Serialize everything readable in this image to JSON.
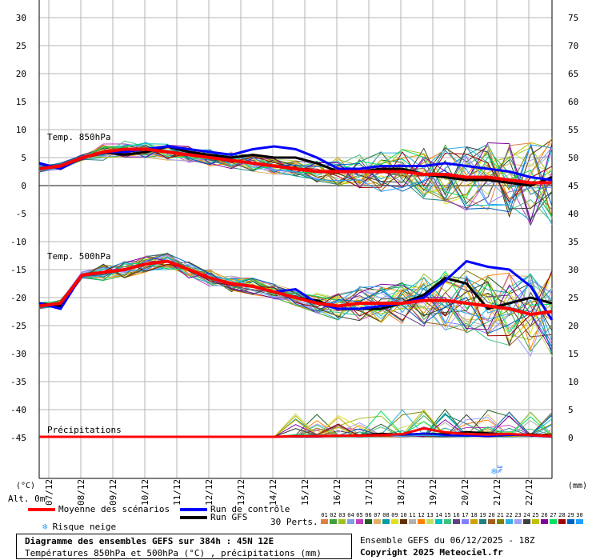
{
  "chart_data": {
    "type": "line",
    "title": "Diagramme des ensembles GEFS sur 384h : 45N 12E",
    "subtitle": "Températures 850hPa et 500hPa (°C) , précipitations (mm)",
    "left_axis": {
      "label": "(°C)",
      "ticks": [
        30,
        25,
        20,
        15,
        10,
        5,
        0,
        -5,
        -10,
        -15,
        -20,
        -25,
        -30,
        -35,
        -40,
        -45
      ]
    },
    "right_axis": {
      "label": "(mm)",
      "ticks": [
        75,
        70,
        65,
        60,
        55,
        50,
        45,
        40,
        35,
        30,
        25,
        20,
        15,
        10,
        5,
        0
      ]
    },
    "altitude_label": "Alt. 0m",
    "x_ticks": [
      "07/12",
      "08/12",
      "09/12",
      "10/12",
      "11/12",
      "12/12",
      "13/12",
      "14/12",
      "15/12",
      "16/12",
      "17/12",
      "18/12",
      "19/12",
      "20/12",
      "21/12",
      "22/12"
    ],
    "panel_labels": {
      "t850": "Temp. 850hPa",
      "t500": "Temp. 500hPa",
      "precip": "Précipitations"
    },
    "grid": true,
    "series": [
      {
        "name": "Moyenne des scénarios",
        "color": "#ff0000",
        "t850": [
          3,
          3.5,
          5,
          6,
          6.5,
          6.5,
          6,
          5.5,
          5,
          4.5,
          4,
          3.5,
          3,
          2.5,
          2.5,
          2.5,
          2.5,
          2.5,
          2,
          2,
          1.5,
          1.5,
          1,
          0.5,
          0.5
        ],
        "t500": [
          -21.5,
          -21,
          -16,
          -15.5,
          -15,
          -14,
          -13.5,
          -15,
          -16.5,
          -17.5,
          -18,
          -19,
          -20,
          -21,
          -21.5,
          -21,
          -21,
          -21,
          -20.5,
          -20.5,
          -21,
          -21.5,
          -22,
          -23,
          -22.5
        ],
        "precip": [
          0,
          0,
          0,
          0,
          0,
          0,
          0,
          0,
          0,
          0,
          0,
          0,
          0.1,
          0.1,
          0.2,
          0.2,
          0.3,
          0.5,
          1.5,
          0.8,
          0.5,
          0.4,
          0.5,
          0.3,
          0.1
        ]
      },
      {
        "name": "Run de contrôle",
        "color": "#0000ff",
        "t850": [
          4,
          3,
          5,
          6,
          6,
          6.5,
          7,
          6.5,
          6,
          5.5,
          6.5,
          7,
          6.5,
          5,
          3,
          3,
          3.5,
          3.5,
          3.5,
          4,
          3.5,
          3,
          2.5,
          1.5,
          1
        ],
        "t500": [
          -21,
          -22,
          -16,
          -15.5,
          -15,
          -14,
          -13.5,
          -15,
          -16.5,
          -17.5,
          -18,
          -19,
          -18.5,
          -21,
          -22,
          -22,
          -21.5,
          -21,
          -20,
          -17,
          -13.5,
          -14.5,
          -15,
          -18,
          -24
        ],
        "precip": [
          0,
          0,
          0,
          0,
          0,
          0,
          0,
          0,
          0,
          0,
          0,
          0,
          0,
          0,
          0.2,
          0.1,
          0.3,
          0.4,
          0.6,
          0.3,
          0.2,
          0.1,
          0.3,
          0.2,
          0
        ]
      },
      {
        "name": "Run GFS",
        "color": "#000000",
        "t850": [
          4,
          3,
          5,
          6,
          5.5,
          6,
          7,
          6,
          5.5,
          5,
          5.5,
          5,
          5,
          4,
          2.5,
          2.5,
          3,
          3,
          2,
          1.5,
          1,
          1,
          0.5,
          0,
          1.5
        ],
        "t500": [
          -21,
          -21.5,
          -16,
          -15.5,
          -15,
          -14,
          -13.5,
          -15,
          -16.5,
          -17.5,
          -18,
          -19,
          -20,
          -20.5,
          -22,
          -22,
          -22,
          -21,
          -19.5,
          -16.5,
          -17.5,
          -22,
          -21,
          -20,
          -21
        ],
        "precip": [
          0,
          0,
          0,
          0,
          0,
          0,
          0,
          0,
          0,
          0,
          0,
          0,
          0,
          0.1,
          0.2,
          0.3,
          0.6,
          0.4,
          0.6,
          0.5,
          0.9,
          0.7,
          0.4,
          0.5,
          0.2
        ]
      }
    ],
    "perturbation_count": 30,
    "perturbation_labels": [
      "01",
      "02",
      "03",
      "04",
      "05",
      "06",
      "07",
      "08",
      "09",
      "10",
      "11",
      "12",
      "13",
      "14",
      "15",
      "16",
      "17",
      "18",
      "19",
      "20",
      "21",
      "22",
      "23",
      "24",
      "25",
      "26",
      "27",
      "28",
      "29",
      "30"
    ],
    "perturbation_colors": [
      "#e08040",
      "#40a040",
      "#a0c020",
      "#80a0e0",
      "#c040c0",
      "#206020",
      "#e0b060",
      "#00a0a0",
      "#e0e020",
      "#603000",
      "#b0b0b0",
      "#ff8000",
      "#c0e060",
      "#00c0c0",
      "#40c080",
      "#604080",
      "#8080ff",
      "#d0a000",
      "#208080",
      "#a06020",
      "#808000",
      "#30b0e0",
      "#a0a0ff",
      "#404040",
      "#c0c000",
      "#8000a0",
      "#00e060",
      "#a00000",
      "#0060c0",
      "#20a0ff"
    ]
  },
  "legend": {
    "mean_label": "Moyenne des scénarios",
    "control_label": "Run de contrôle",
    "gfs_label": "Run GFS",
    "snow_label": "Risque neige",
    "perts_label": "30 Perts.",
    "snow_marker_text": "3%"
  },
  "footer": {
    "title": "Diagramme des ensembles GEFS sur 384h : 45N 12E",
    "subtitle": "Températures 850hPa et 500hPa (°C) , précipitations (mm)",
    "run_info": "Ensemble GEFS du 06/12/2025 - 18Z",
    "copyright": "Copyright 2025 Meteociel.fr"
  },
  "colors": {
    "mean": "#ff0000",
    "control": "#0000ff",
    "gfs": "#000000",
    "grid": "#b4b4b4",
    "snow": "#40a0ff"
  }
}
